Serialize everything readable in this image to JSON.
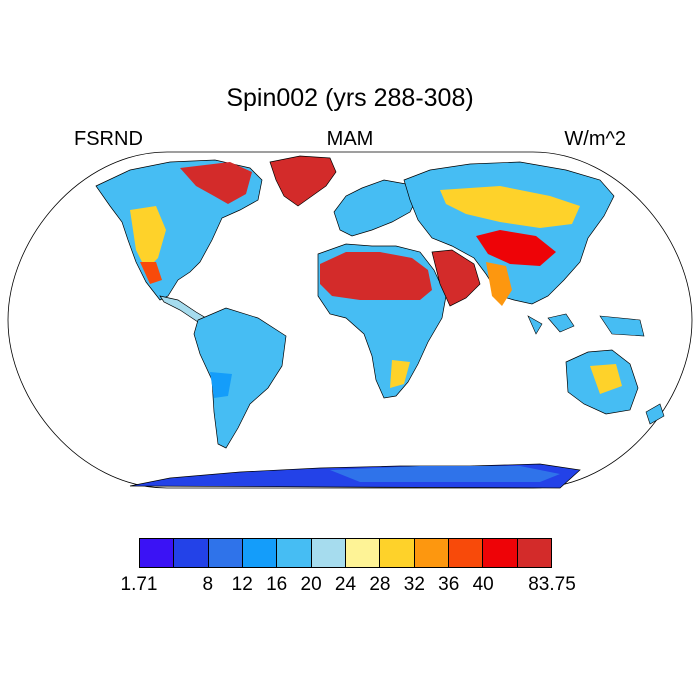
{
  "title": "Spin002 (yrs 288-308)",
  "left_label": "FSRND",
  "center_label": "MAM",
  "right_label": "W/m^2",
  "projection": "Robinson",
  "colorbar": {
    "colors": [
      "#3b12f5",
      "#2342e8",
      "#2f73ea",
      "#149dfa",
      "#46bdf3",
      "#a6dcee",
      "#fef396",
      "#fed22a",
      "#fd970f",
      "#f84a0a",
      "#ee0307",
      "#d32b2a"
    ],
    "labels": [
      {
        "value": "1.71",
        "boundary": 0
      },
      {
        "value": "8",
        "boundary": 2
      },
      {
        "value": "12",
        "boundary": 3
      },
      {
        "value": "16",
        "boundary": 4
      },
      {
        "value": "20",
        "boundary": 5
      },
      {
        "value": "24",
        "boundary": 6
      },
      {
        "value": "28",
        "boundary": 7
      },
      {
        "value": "32",
        "boundary": 8
      },
      {
        "value": "36",
        "boundary": 9
      },
      {
        "value": "40",
        "boundary": 10
      },
      {
        "value": "83.75",
        "boundary": 12
      }
    ]
  },
  "regions": [
    {
      "name": "Greenland",
      "value": "high",
      "color": "#d32b2a"
    },
    {
      "name": "Sahara",
      "value": "high",
      "color": "#d32b2a"
    },
    {
      "name": "Arabian Peninsula",
      "value": "high",
      "color": "#d32b2a"
    },
    {
      "name": "Antarctica",
      "value": "low",
      "color": "#2342e8"
    },
    {
      "name": "Amazon",
      "value": "moderate",
      "color": "#46bdf3"
    },
    {
      "name": "Australia interior",
      "value": "moderate-high",
      "color": "#fed22a"
    }
  ]
}
